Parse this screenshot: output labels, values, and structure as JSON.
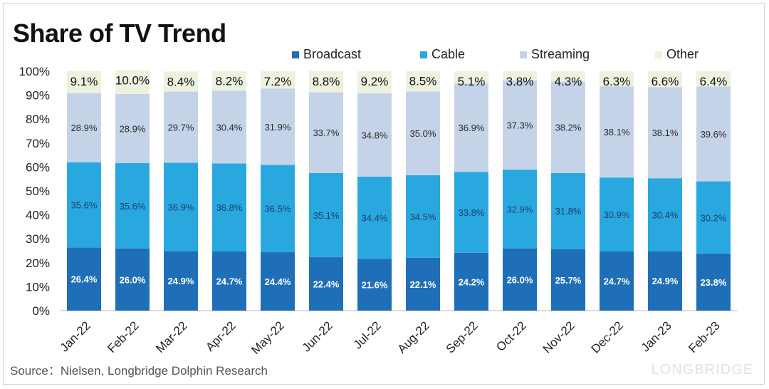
{
  "title": "Share of TV Trend",
  "source": "Source：Nielsen, Longbridge Dolphin Research",
  "watermark": "LONGBRIDGE",
  "legend": [
    {
      "name": "Broadcast",
      "color": "#1f6fb8"
    },
    {
      "name": "Cable",
      "color": "#29a8e0"
    },
    {
      "name": "Streaming",
      "color": "#c5d3e8"
    },
    {
      "name": "Other",
      "color": "#edf2df"
    }
  ],
  "chart_data": {
    "type": "bar",
    "stacked": true,
    "categories": [
      "Jan-22",
      "Feb-22",
      "Mar-22",
      "Apr-22",
      "May-22",
      "Jun-22",
      "Jul-22",
      "Aug-22",
      "Sep-22",
      "Oct-22",
      "Nov-22",
      "Dec-22",
      "Jan-23",
      "Feb-23"
    ],
    "series": [
      {
        "name": "Broadcast",
        "values": [
          26.4,
          26.0,
          24.9,
          24.7,
          24.4,
          22.4,
          21.6,
          22.1,
          24.2,
          26.0,
          25.7,
          24.7,
          24.9,
          23.8
        ],
        "labels": [
          "26.4%",
          "26.0%",
          "24.9%",
          "24.7%",
          "24.4%",
          "22.4%",
          "21.6%",
          "22.1%",
          "24.2%",
          "26.0%",
          "25.7%",
          "24.7%",
          "24.9%",
          "23.8%"
        ]
      },
      {
        "name": "Cable",
        "values": [
          35.6,
          35.6,
          36.9,
          36.8,
          36.5,
          35.1,
          34.4,
          34.5,
          33.8,
          32.9,
          31.8,
          30.9,
          30.4,
          30.2
        ],
        "labels": [
          "35.6%",
          "35.6%",
          "36.9%",
          "36.8%",
          "36.5%",
          "35.1%",
          "34.4%",
          "34.5%",
          "33.8%",
          "32.9%",
          "31.8%",
          "30.9%",
          "30.4%",
          "30.2%"
        ]
      },
      {
        "name": "Streaming",
        "values": [
          28.9,
          28.9,
          29.7,
          30.4,
          31.9,
          33.7,
          34.8,
          35.0,
          36.9,
          37.3,
          38.2,
          38.1,
          38.1,
          39.6
        ],
        "labels": [
          "28.9%",
          "28.9%",
          "29.7%",
          "30.4%",
          "31.9%",
          "33.7%",
          "34.8%",
          "35.0%",
          "36.9%",
          "37.3%",
          "38.2%",
          "38.1%",
          "38.1%",
          "39.6%"
        ]
      },
      {
        "name": "Other",
        "values": [
          9.1,
          10.0,
          8.4,
          8.2,
          7.2,
          8.8,
          9.2,
          8.5,
          5.1,
          3.8,
          4.3,
          6.3,
          6.6,
          6.4
        ],
        "labels": [
          "9.1%",
          "10.0%",
          "8.4%",
          "8.2%",
          "7.2%",
          "8.8%",
          "9.2%",
          "8.5%",
          "5.1%",
          "3.8%",
          "4.3%",
          "6.3%",
          "6.6%",
          "6.4%"
        ]
      }
    ],
    "ylim": [
      0,
      100
    ],
    "yticks": [
      "0%",
      "10%",
      "20%",
      "30%",
      "40%",
      "50%",
      "60%",
      "70%",
      "80%",
      "90%",
      "100%"
    ],
    "legend_position": "top",
    "grid": false
  }
}
